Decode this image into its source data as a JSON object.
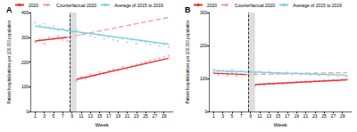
{
  "chart_data": [
    {
      "type": "line",
      "title": "A",
      "x_label": "Week",
      "y_label": "Patient hospitalizations per 100,000 population",
      "xlim": [
        0,
        31
      ],
      "xticks": [
        1,
        3,
        5,
        7,
        9,
        11,
        13,
        15,
        17,
        19,
        21,
        23,
        25,
        27,
        29
      ],
      "ylim": [
        0,
        400
      ],
      "yticks": [
        0,
        100,
        200,
        300,
        400
      ],
      "grid": false,
      "legend": "top",
      "annotations": {
        "vline": 8.5,
        "band": [
          8.5,
          10
        ]
      },
      "series": [
        {
          "name": "2020",
          "color": "#e8312f",
          "line_style": "solid",
          "x": [
            1,
            8,
            9,
            10,
            30
          ],
          "values": [
            285,
            300,
            null,
            130,
            215
          ]
        },
        {
          "name": "Counterfactual 2020",
          "color": "#f4a0a0",
          "line_style": "dashed",
          "x": [
            8,
            30
          ],
          "values": [
            300,
            380
          ]
        },
        {
          "name": "Average of 2015 to 2019",
          "color": "#7fcfe0",
          "line_style": "solid",
          "x": [
            1,
            30
          ],
          "values": [
            345,
            272
          ]
        },
        {
          "type": "scatter",
          "marker": "circle",
          "color": "#f5a3a8",
          "x": [
            1,
            2,
            3,
            4,
            5,
            6,
            7,
            8,
            10,
            11,
            12,
            13,
            14,
            15,
            16,
            17,
            18,
            19,
            20,
            21,
            22,
            23,
            24,
            25,
            26,
            27,
            28,
            29,
            30
          ],
          "values": [
            280,
            290,
            275,
            300,
            295,
            305,
            290,
            285,
            125,
            140,
            135,
            150,
            145,
            160,
            155,
            165,
            170,
            168,
            180,
            175,
            185,
            190,
            195,
            200,
            205,
            210,
            215,
            220,
            225
          ]
        },
        {
          "type": "scatter",
          "marker": "circle",
          "color": "#a8dbe6",
          "x": [
            1,
            2,
            3,
            4,
            5,
            6,
            7,
            8,
            9,
            10,
            11,
            12,
            13,
            14,
            15,
            16,
            17,
            18,
            19,
            20,
            21,
            22,
            23,
            24,
            25,
            26,
            27,
            28,
            29,
            30
          ],
          "values": [
            360,
            350,
            355,
            340,
            345,
            330,
            335,
            325,
            320,
            330,
            310,
            315,
            305,
            300,
            310,
            295,
            300,
            290,
            285,
            295,
            280,
            290,
            275,
            285,
            280,
            270,
            275,
            265,
            270,
            260
          ]
        }
      ]
    },
    {
      "type": "line",
      "title": "B",
      "x_label": "Week",
      "y_label": "Patient hospitalizations per 100,000 population",
      "xlim": [
        0,
        31
      ],
      "xticks": [
        1,
        3,
        5,
        7,
        9,
        11,
        13,
        15,
        17,
        19,
        21,
        23,
        25,
        27,
        29
      ],
      "ylim": [
        0,
        300
      ],
      "yticks": [
        0,
        100,
        200,
        300
      ],
      "grid": false,
      "legend": "top",
      "annotations": {
        "vline": 8.5,
        "band": [
          8.5,
          10
        ]
      },
      "series": [
        {
          "name": "2020",
          "color": "#e8312f",
          "line_style": "solid",
          "x": [
            1,
            8,
            9,
            10,
            30
          ],
          "values": [
            116,
            112,
            null,
            82,
            96
          ]
        },
        {
          "name": "Counterfactual 2020",
          "color": "#f4a0a0",
          "line_style": "dashed",
          "x": [
            8,
            30
          ],
          "values": [
            112,
            118
          ]
        },
        {
          "name": "Average of 2015 to 2019",
          "color": "#7fcfe0",
          "line_style": "solid",
          "x": [
            1,
            30
          ],
          "values": [
            124,
            110
          ]
        },
        {
          "type": "scatter",
          "marker": "circle",
          "color": "#f5a3a8",
          "x": [
            1,
            2,
            3,
            4,
            5,
            6,
            7,
            8,
            10,
            11,
            12,
            13,
            14,
            15,
            16,
            17,
            18,
            19,
            20,
            21,
            22,
            23,
            24,
            25,
            26,
            27,
            28,
            29,
            30
          ],
          "values": [
            118,
            112,
            115,
            110,
            117,
            108,
            113,
            111,
            78,
            82,
            80,
            85,
            83,
            86,
            84,
            88,
            87,
            90,
            89,
            91,
            88,
            93,
            92,
            95,
            94,
            96,
            93,
            97,
            98
          ]
        },
        {
          "type": "scatter",
          "marker": "circle",
          "color": "#a8dbe6",
          "x": [
            1,
            2,
            3,
            4,
            5,
            6,
            7,
            8,
            9,
            10,
            11,
            12,
            13,
            14,
            15,
            16,
            17,
            18,
            19,
            20,
            21,
            22,
            23,
            24,
            25,
            26,
            27,
            28,
            29,
            30
          ],
          "values": [
            128,
            122,
            125,
            120,
            126,
            118,
            123,
            119,
            121,
            117,
            122,
            116,
            120,
            115,
            118,
            114,
            119,
            113,
            117,
            112,
            116,
            111,
            115,
            110,
            114,
            109,
            113,
            108,
            112,
            107
          ]
        }
      ]
    }
  ]
}
